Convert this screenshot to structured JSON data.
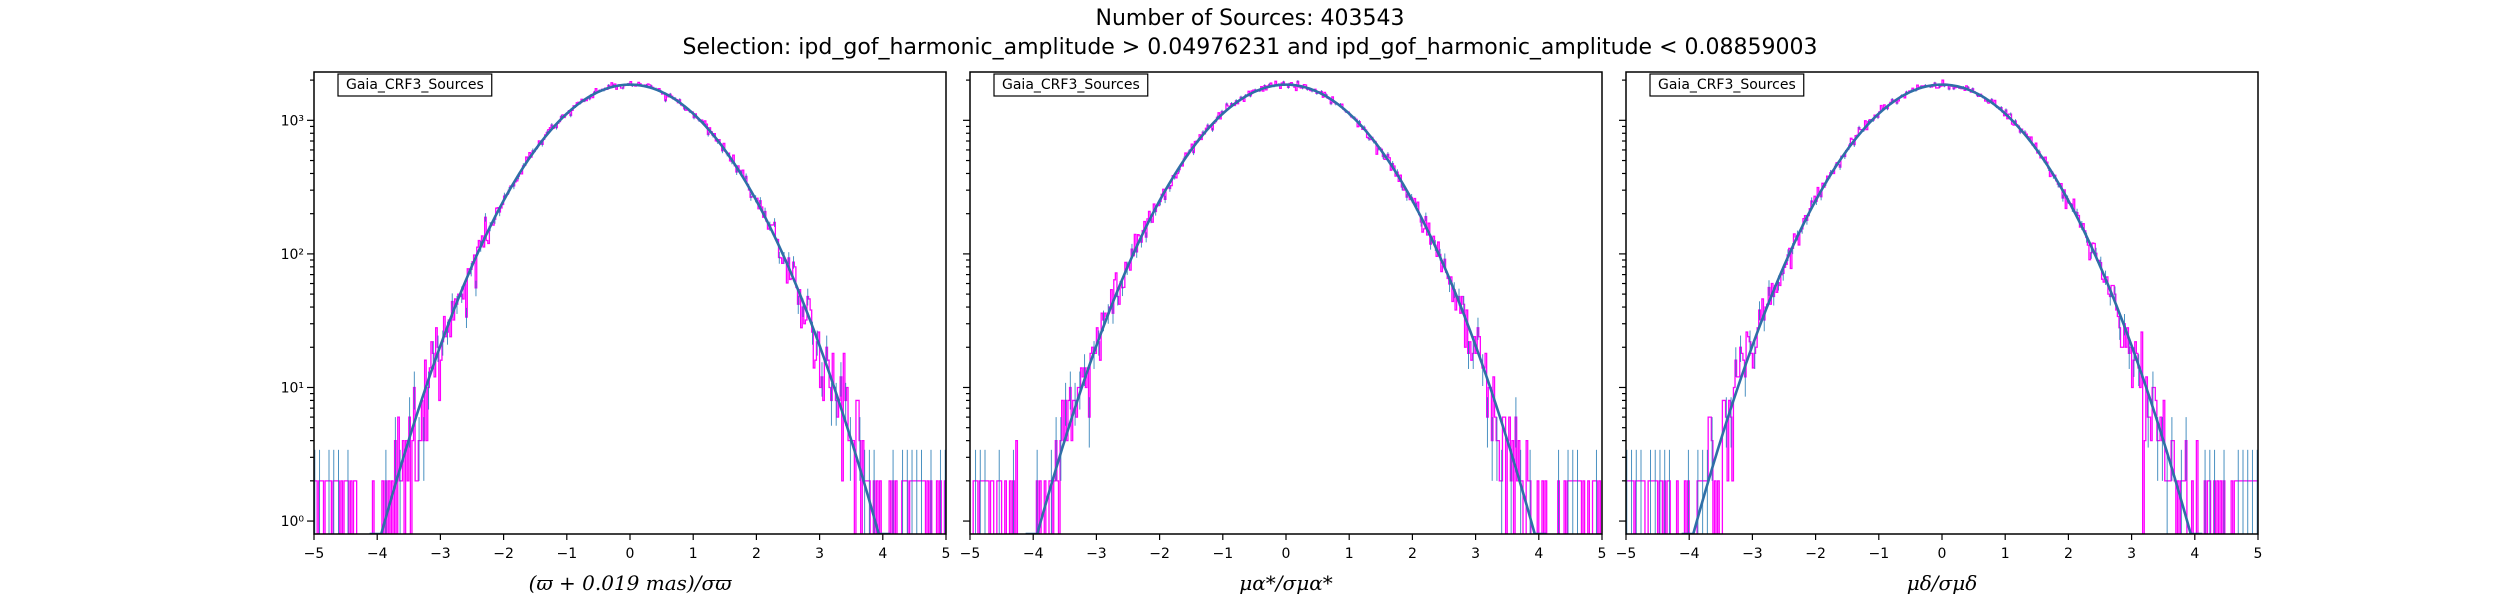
{
  "header": {
    "title": "Number of Sources: 403543",
    "subtitle": "Selection: ipd_gof_harmonic_amplitude > 0.04976231 and ipd_gof_harmonic_amplitude < 0.08859003"
  },
  "colors": {
    "histogram": "#ff00ff",
    "fit_curve": "#2f6fa7",
    "error_bars": "#1f77b4"
  },
  "chart_data": [
    {
      "type": "line",
      "legend": "Gaia_CRF3_Sources",
      "legend_placement": "top-left",
      "xlabel": "(ϖ + 0.019 mas)/σϖ",
      "xlim": [
        -5,
        5
      ],
      "ylim": [
        0.8,
        2300
      ],
      "yscale": "log",
      "grid": false,
      "x_ticks": [
        "−5",
        "−4",
        "−3",
        "−2",
        "−1",
        "0",
        "1",
        "2",
        "3",
        "4",
        "5"
      ],
      "y_ticks": [
        {
          "value": 1,
          "label": "10⁰"
        },
        {
          "value": 10,
          "label": "10¹"
        },
        {
          "value": 100,
          "label": "10²"
        },
        {
          "value": 1000,
          "label": "10³"
        }
      ],
      "series": [
        {
          "kind": "histogram",
          "peak": 1850,
          "center": 0.0,
          "sigma": 1.0
        },
        {
          "kind": "gaussian-fit",
          "peak": 1850,
          "center": 0.0,
          "sigma": 1.0
        }
      ]
    },
    {
      "type": "line",
      "legend": "Gaia_CRF3_Sources",
      "legend_placement": "top-left",
      "xlabel": "μα*/σμα*",
      "xlim": [
        -5,
        5
      ],
      "ylim": [
        0.8,
        2300
      ],
      "yscale": "log",
      "grid": false,
      "x_ticks": [
        "−5",
        "−4",
        "−3",
        "−2",
        "−1",
        "0",
        "1",
        "2",
        "3",
        "4",
        "5"
      ],
      "y_ticks": [],
      "series": [
        {
          "kind": "histogram",
          "peak": 1850,
          "center": 0.0,
          "sigma": 1.0
        },
        {
          "kind": "gaussian-fit",
          "peak": 1850,
          "center": 0.0,
          "sigma": 1.0
        }
      ]
    },
    {
      "type": "line",
      "legend": "Gaia_CRF3_Sources",
      "legend_placement": "top-left",
      "xlabel": "μδ/σμδ",
      "xlim": [
        -5,
        5
      ],
      "ylim": [
        0.8,
        2300
      ],
      "yscale": "log",
      "grid": false,
      "x_ticks": [
        "−5",
        "−4",
        "−3",
        "−2",
        "−1",
        "0",
        "1",
        "2",
        "3",
        "4",
        "5"
      ],
      "y_ticks": [],
      "series": [
        {
          "kind": "histogram",
          "peak": 1850,
          "center": 0.0,
          "sigma": 1.0
        },
        {
          "kind": "gaussian-fit",
          "peak": 1850,
          "center": 0.0,
          "sigma": 1.0
        }
      ]
    }
  ]
}
